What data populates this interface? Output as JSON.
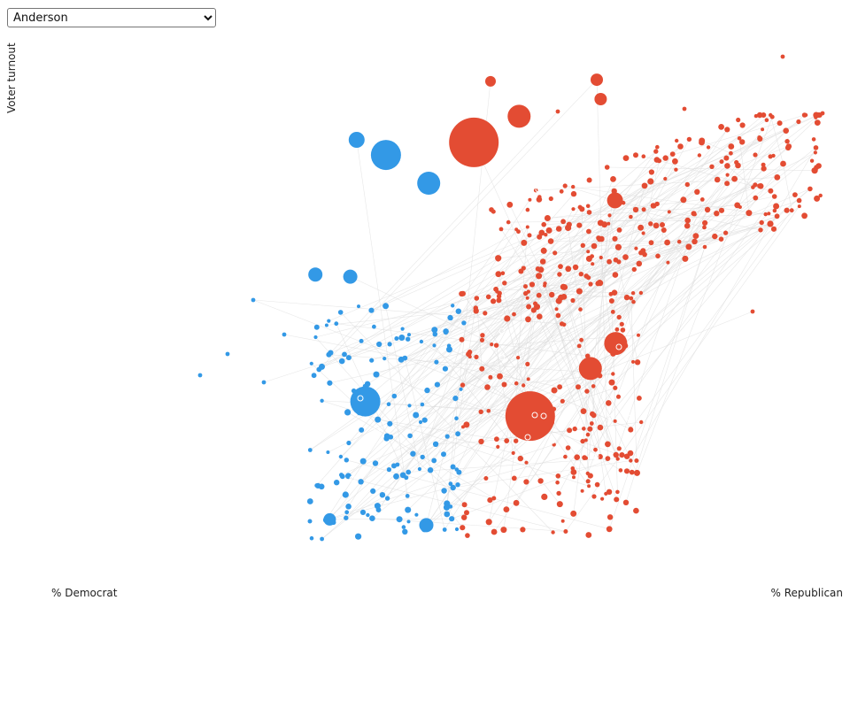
{
  "selector": {
    "selected": "Anderson",
    "options": [
      "Anderson"
    ]
  },
  "colors": {
    "democrat": "#3399e6",
    "republican": "#e34c33",
    "link": "#dddddd",
    "ring": "#ffffff"
  },
  "chart_data": {
    "type": "scatter",
    "xlabel_left": "% Democrat",
    "xlabel_right": "% Republican",
    "ylabel": "Voter turnout",
    "xlim": [
      0,
      100
    ],
    "ylim": [
      0,
      100
    ],
    "grid": false,
    "legend": "none",
    "large_points": [
      {
        "party": "R",
        "x": 53.1,
        "y": 79.5,
        "size": 28
      },
      {
        "party": "R",
        "x": 60.2,
        "y": 27.1,
        "size": 28
      },
      {
        "party": "D",
        "x": 42.0,
        "y": 77.1,
        "size": 17
      },
      {
        "party": "D",
        "x": 39.4,
        "y": 29.9,
        "size": 17
      },
      {
        "party": "D",
        "x": 47.4,
        "y": 71.7,
        "size": 13
      },
      {
        "party": "R",
        "x": 58.8,
        "y": 84.5,
        "size": 13
      },
      {
        "party": "R",
        "x": 71.0,
        "y": 41.0,
        "size": 13
      },
      {
        "party": "R",
        "x": 67.8,
        "y": 36.2,
        "size": 13
      },
      {
        "party": "D",
        "x": 38.3,
        "y": 80.0,
        "size": 9
      },
      {
        "party": "D",
        "x": 33.1,
        "y": 54.2,
        "size": 8
      },
      {
        "party": "D",
        "x": 37.5,
        "y": 53.8,
        "size": 8
      },
      {
        "party": "D",
        "x": 47.1,
        "y": 6.2,
        "size": 8
      },
      {
        "party": "D",
        "x": 34.9,
        "y": 7.3,
        "size": 7
      },
      {
        "party": "R",
        "x": 55.2,
        "y": 91.2,
        "size": 6
      },
      {
        "party": "R",
        "x": 68.6,
        "y": 91.5,
        "size": 7
      },
      {
        "party": "R",
        "x": 69.1,
        "y": 87.8,
        "size": 7
      },
      {
        "party": "R",
        "x": 70.9,
        "y": 68.4,
        "size": 9
      }
    ]
  }
}
